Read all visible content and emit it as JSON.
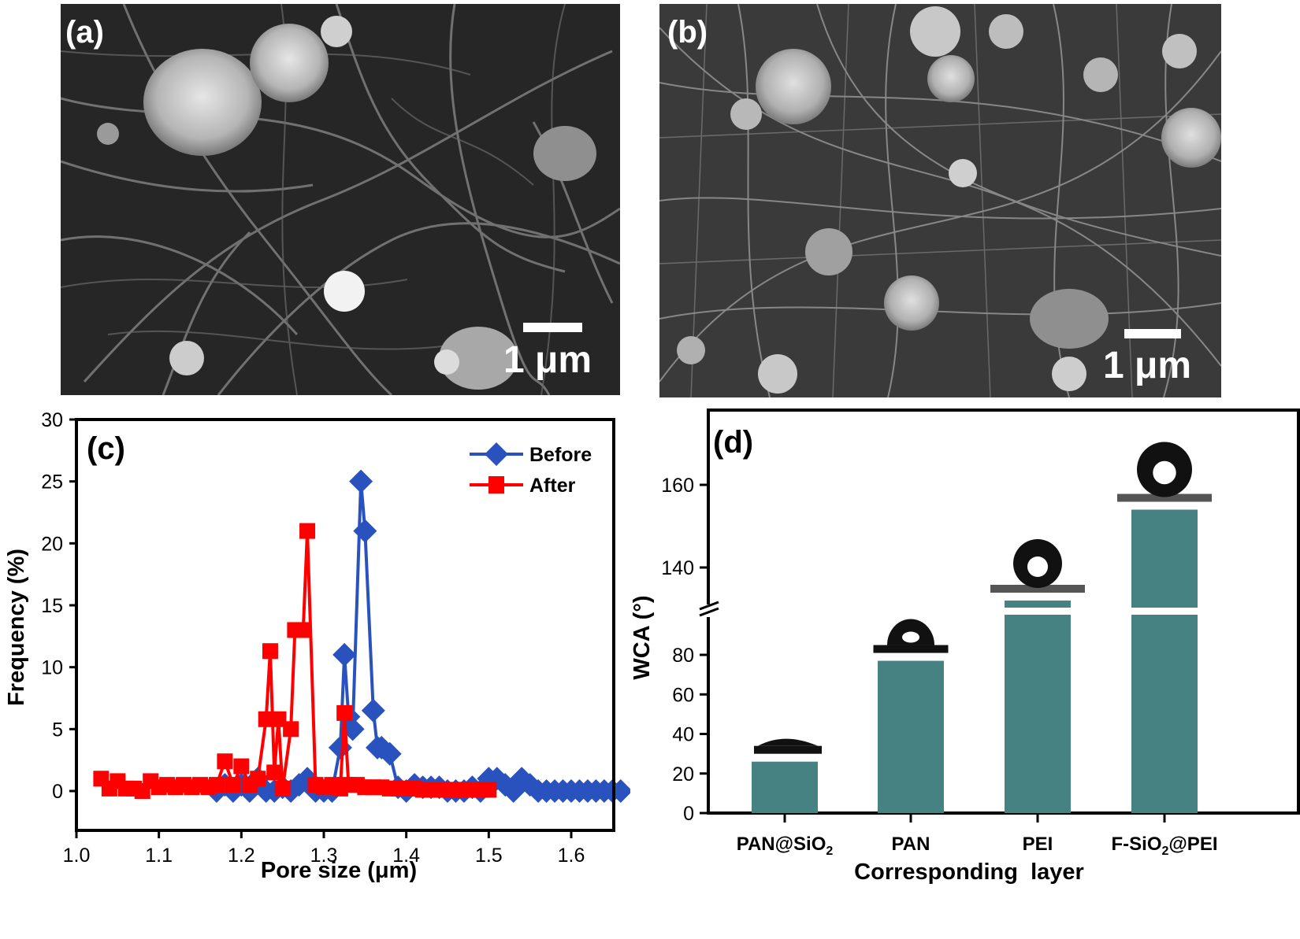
{
  "figure": {
    "panels": {
      "a": {
        "label": "(a)",
        "type": "SEM image",
        "scale_bar": "1 μm"
      },
      "b": {
        "label": "(b)",
        "type": "SEM image",
        "scale_bar": "1 μm"
      },
      "c": {
        "label": "(c)"
      },
      "d": {
        "label": "(d)"
      }
    }
  },
  "chart_data": [
    {
      "panel": "(c)",
      "type": "line",
      "title": "",
      "xlabel": "Pore size (μm)",
      "ylabel": "Frequency (%)",
      "xlim": [
        1.0,
        1.68
      ],
      "ylim": [
        -2,
        30
      ],
      "xticks": [
        "1.0",
        "1.1",
        "1.2",
        "1.3",
        "1.4",
        "1.5",
        "1.6"
      ],
      "yticks": [
        "0",
        "5",
        "10",
        "15",
        "20",
        "25",
        "30"
      ],
      "grid": false,
      "legend_position": "upper right",
      "series": [
        {
          "name": "Before",
          "color": "#2a52be",
          "marker": "diamond",
          "x": [
            1.17,
            1.18,
            1.19,
            1.2,
            1.21,
            1.22,
            1.23,
            1.24,
            1.25,
            1.26,
            1.27,
            1.28,
            1.29,
            1.3,
            1.31,
            1.32,
            1.325,
            1.33,
            1.335,
            1.345,
            1.35,
            1.36,
            1.365,
            1.37,
            1.38,
            1.39,
            1.4,
            1.41,
            1.42,
            1.43,
            1.44,
            1.45,
            1.46,
            1.47,
            1.48,
            1.49,
            1.5,
            1.51,
            1.52,
            1.53,
            1.54,
            1.55,
            1.56,
            1.57,
            1.58,
            1.59,
            1.6,
            1.61,
            1.62,
            1.63,
            1.64,
            1.65,
            1.66
          ],
          "y": [
            0,
            0.5,
            0,
            0.5,
            0,
            1.0,
            0,
            0,
            0.3,
            0,
            0.5,
            1.0,
            0,
            0,
            0,
            3.5,
            11.0,
            6.0,
            5.0,
            25.0,
            21.0,
            6.5,
            3.5,
            3.5,
            3.0,
            0.3,
            0,
            0.5,
            0.3,
            0.3,
            0.3,
            0,
            0,
            0,
            0.3,
            0,
            1.0,
            1.0,
            0.5,
            0,
            1.0,
            0.5,
            0,
            0,
            0,
            0,
            0,
            0,
            0,
            0,
            0,
            0,
            0
          ]
        },
        {
          "name": "After",
          "color": "#ff0000",
          "marker": "square",
          "x": [
            1.03,
            1.04,
            1.05,
            1.06,
            1.07,
            1.08,
            1.09,
            1.1,
            1.11,
            1.12,
            1.13,
            1.14,
            1.15,
            1.16,
            1.17,
            1.18,
            1.19,
            1.2,
            1.21,
            1.22,
            1.23,
            1.235,
            1.24,
            1.245,
            1.25,
            1.26,
            1.265,
            1.27,
            1.275,
            1.28,
            1.29,
            1.3,
            1.31,
            1.32,
            1.325,
            1.33,
            1.34,
            1.35,
            1.36,
            1.37,
            1.38,
            1.39,
            1.4,
            1.41,
            1.42,
            1.43,
            1.44,
            1.45,
            1.46,
            1.47,
            1.48,
            1.49,
            1.5
          ],
          "y": [
            1.0,
            0.2,
            0.8,
            0.2,
            0.2,
            0,
            0.8,
            0.3,
            0.5,
            0.3,
            0.5,
            0.3,
            0.5,
            0.3,
            0.5,
            2.4,
            0.5,
            2.0,
            0.5,
            1.0,
            5.8,
            11.3,
            1.5,
            5.8,
            0.2,
            5.0,
            13.0,
            13.0,
            13.0,
            21.0,
            0.5,
            0.3,
            0.5,
            0.2,
            6.3,
            0.5,
            0.5,
            0.3,
            0.3,
            0.3,
            0.2,
            0.2,
            0.2,
            0.2,
            0.1,
            0.1,
            0.1,
            0.1,
            0.1,
            0.1,
            0.1,
            0.1,
            0.1
          ]
        }
      ]
    },
    {
      "panel": "(d)",
      "type": "bar",
      "title": "",
      "xlabel": "Corresponding  layer",
      "ylabel": "WCA (°)",
      "categories": [
        "PAN@SiO2",
        "PAN",
        "PEI",
        "F-SiO2@PEI"
      ],
      "category_labels": [
        {
          "main": "PAN@SiO",
          "sub": "2",
          "after": ""
        },
        {
          "main": "PAN",
          "sub": "",
          "after": ""
        },
        {
          "main": "PEI",
          "sub": "",
          "after": ""
        },
        {
          "main": "F-SiO",
          "sub": "2",
          "after": "@PEI"
        }
      ],
      "values": [
        26,
        77,
        132,
        154
      ],
      "bar_color": "#458281",
      "axis_break": {
        "lower_range": [
          0,
          95
        ],
        "upper_range": [
          125,
          170
        ]
      },
      "yticks_lower": [
        "0",
        "20",
        "40",
        "60",
        "80"
      ],
      "yticks_upper": [
        "140",
        "160"
      ],
      "annotations": "water droplet contact-angle photos above each bar",
      "grid": false
    }
  ]
}
